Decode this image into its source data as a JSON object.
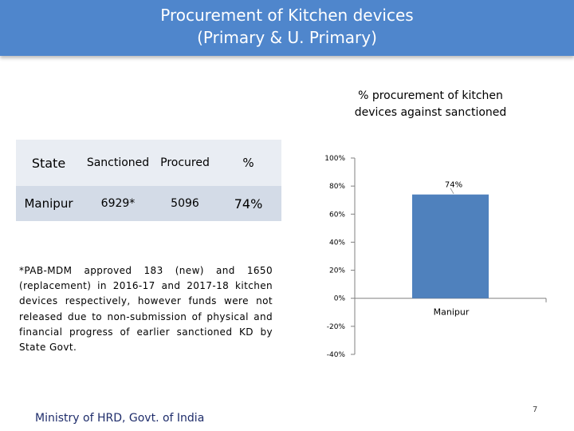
{
  "header": {
    "title_line1": "Procurement of Kitchen devices",
    "title_line2": "(Primary & U. Primary)"
  },
  "table": {
    "headers": [
      "State",
      "Sanctioned",
      "Procured",
      "%"
    ],
    "rows": [
      [
        "Manipur",
        "6929*",
        "5096",
        "74%"
      ]
    ]
  },
  "note": "*PAB-MDM approved 183 (new) and 1650 (replacement) in 2016-17 and 2017-18 kitchen devices respectively, however funds were not released due to non-submission of physical and financial progress of earlier sanctioned KD by State Govt.",
  "footer": "Ministry of HRD, Govt. of India",
  "page_number": "7",
  "chart_data": {
    "type": "bar",
    "title_line1": "% procurement of kitchen",
    "title_line2": "devices against sanctioned",
    "categories": [
      "Manipur"
    ],
    "values": [
      74
    ],
    "data_labels": [
      "74%"
    ],
    "ylim": [
      -40,
      100
    ],
    "yticks": [
      100,
      80,
      60,
      40,
      20,
      0,
      -20,
      -40
    ],
    "ytick_labels": [
      "100%",
      "80%",
      "60%",
      "40%",
      "20%",
      "0%",
      "-20%",
      "-40%"
    ],
    "xlabel": "",
    "ylabel": "",
    "grid": false,
    "bar_color": "#4f81bd"
  }
}
